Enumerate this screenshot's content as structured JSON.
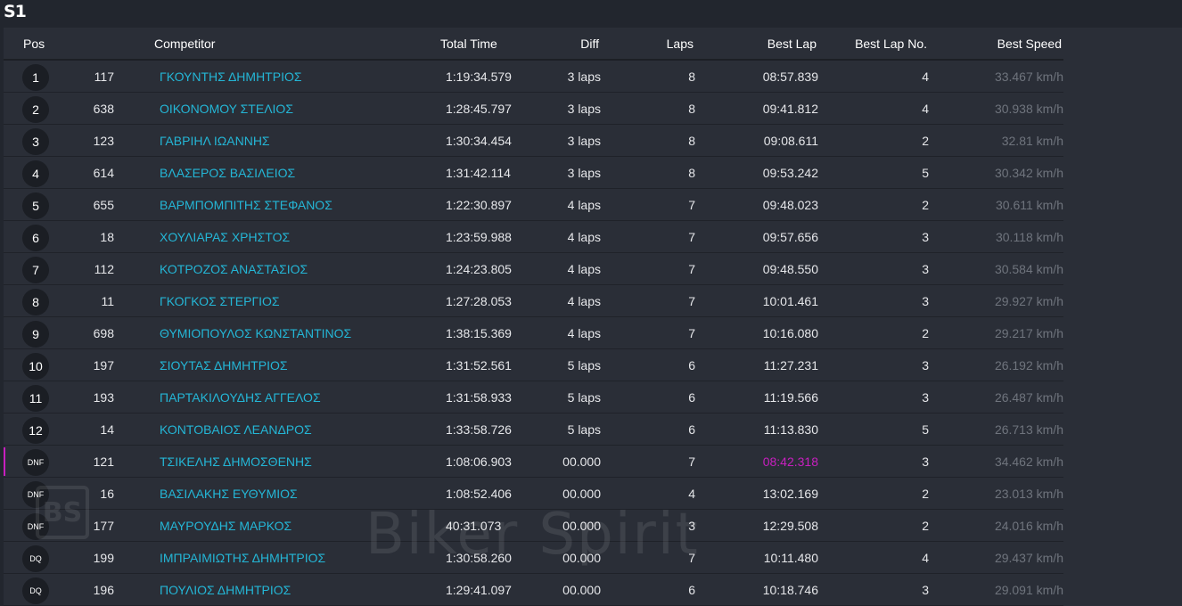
{
  "title": "S1",
  "columns": {
    "pos": "Pos",
    "competitor": "Competitor",
    "total_time": "Total Time",
    "diff": "Diff",
    "laps": "Laps",
    "best_lap": "Best Lap",
    "best_lap_no": "Best Lap No.",
    "best_speed": "Best Speed"
  },
  "rows": [
    {
      "pos": "1",
      "num": "117",
      "name": "ΓΚΟΥΝΤΗΣ ΔΗΜΗΤΡΙΟΣ",
      "total": "1:19:34.579",
      "diff": "3 laps",
      "laps": "8",
      "best_lap": "08:57.839",
      "best_lap_no": "4",
      "speed": "33.467 km/h"
    },
    {
      "pos": "2",
      "num": "638",
      "name": "ΟΙΚΟΝΟΜΟΥ ΣΤΕΛΙΟΣ",
      "total": "1:28:45.797",
      "diff": "3 laps",
      "laps": "8",
      "best_lap": "09:41.812",
      "best_lap_no": "4",
      "speed": "30.938 km/h"
    },
    {
      "pos": "3",
      "num": "123",
      "name": "ΓΑΒΡΙΗΛ ΙΩΑΝΝΗΣ",
      "total": "1:30:34.454",
      "diff": "3 laps",
      "laps": "8",
      "best_lap": "09:08.611",
      "best_lap_no": "2",
      "speed": "32.81 km/h"
    },
    {
      "pos": "4",
      "num": "614",
      "name": "ΒΛΑΣΕΡΟΣ ΒΑΣΙΛΕΙΟΣ",
      "total": "1:31:42.114",
      "diff": "3 laps",
      "laps": "8",
      "best_lap": "09:53.242",
      "best_lap_no": "5",
      "speed": "30.342 km/h"
    },
    {
      "pos": "5",
      "num": "655",
      "name": "ΒΑΡΜΠΟΜΠΙΤΗΣ ΣΤΕΦΑΝΟΣ",
      "total": "1:22:30.897",
      "diff": "4 laps",
      "laps": "7",
      "best_lap": "09:48.023",
      "best_lap_no": "2",
      "speed": "30.611 km/h"
    },
    {
      "pos": "6",
      "num": "18",
      "name": "ΧΟΥΛΙΑΡΑΣ ΧΡΗΣΤΟΣ",
      "total": "1:23:59.988",
      "diff": "4 laps",
      "laps": "7",
      "best_lap": "09:57.656",
      "best_lap_no": "3",
      "speed": "30.118 km/h"
    },
    {
      "pos": "7",
      "num": "112",
      "name": "ΚΟΤΡΟΖΟΣ ΑΝΑΣΤΑΣΙΟΣ",
      "total": "1:24:23.805",
      "diff": "4 laps",
      "laps": "7",
      "best_lap": "09:48.550",
      "best_lap_no": "3",
      "speed": "30.584 km/h"
    },
    {
      "pos": "8",
      "num": "11",
      "name": "ΓΚΟΓΚΟΣ ΣΤΕΡΓΙΟΣ",
      "total": "1:27:28.053",
      "diff": "4 laps",
      "laps": "7",
      "best_lap": "10:01.461",
      "best_lap_no": "3",
      "speed": "29.927 km/h"
    },
    {
      "pos": "9",
      "num": "698",
      "name": "ΘΥΜΙΟΠΟΥΛΟΣ ΚΩΝΣΤΑΝΤΙΝΟΣ",
      "total": "1:38:15.369",
      "diff": "4 laps",
      "laps": "7",
      "best_lap": "10:16.080",
      "best_lap_no": "2",
      "speed": "29.217 km/h"
    },
    {
      "pos": "10",
      "num": "197",
      "name": "ΣΙΟΥΤΑΣ ΔΗΜΗΤΡΙΟΣ",
      "total": "1:31:52.561",
      "diff": "5 laps",
      "laps": "6",
      "best_lap": "11:27.231",
      "best_lap_no": "3",
      "speed": "26.192 km/h"
    },
    {
      "pos": "11",
      "num": "193",
      "name": "ΠΑΡΤΑΚΙΛΟΥΔΗΣ ΑΓΓΕΛΟΣ",
      "total": "1:31:58.933",
      "diff": "5 laps",
      "laps": "6",
      "best_lap": "11:19.566",
      "best_lap_no": "3",
      "speed": "26.487 km/h"
    },
    {
      "pos": "12",
      "num": "14",
      "name": "ΚΟΝΤΟΒΑΙΟΣ ΛΕΑΝΔΡΟΣ",
      "total": "1:33:58.726",
      "diff": "5 laps",
      "laps": "6",
      "best_lap": "11:13.830",
      "best_lap_no": "5",
      "speed": "26.713 km/h"
    },
    {
      "pos": "DNF",
      "num": "121",
      "name": "ΤΣΙΚΕΛΗΣ ΔΗΜΟΣΘΕΝΗΣ",
      "total": "1:08:06.903",
      "diff": "00.000",
      "laps": "7",
      "best_lap": "08:42.318",
      "best_lap_no": "3",
      "speed": "34.462 km/h",
      "overall_best": true
    },
    {
      "pos": "DNF",
      "num": "16",
      "name": "ΒΑΣΙΛΑΚΗΣ ΕΥΘΥΜΙΟΣ",
      "total": "1:08:52.406",
      "diff": "00.000",
      "laps": "4",
      "best_lap": "13:02.169",
      "best_lap_no": "2",
      "speed": "23.013 km/h"
    },
    {
      "pos": "DNF",
      "num": "177",
      "name": "ΜΑΥΡΟΥΔΗΣ ΜΑΡΚΟΣ",
      "total": "40:31.073",
      "diff": "00.000",
      "laps": "3",
      "best_lap": "12:29.508",
      "best_lap_no": "2",
      "speed": "24.016 km/h"
    },
    {
      "pos": "DQ",
      "num": "199",
      "name": "ΙΜΠΡΑΙΜΙΩΤΗΣ ΔΗΜΗΤΡΙΟΣ",
      "total": "1:30:58.260",
      "diff": "00.000",
      "laps": "7",
      "best_lap": "10:11.480",
      "best_lap_no": "4",
      "speed": "29.437 km/h"
    },
    {
      "pos": "DQ",
      "num": "196",
      "name": "ΠΟΥΛΙΟΣ ΔΗΜΗΤΡΙΟΣ",
      "total": "1:29:41.097",
      "diff": "00.000",
      "laps": "6",
      "best_lap": "10:18.746",
      "best_lap_no": "3",
      "speed": "29.091 km/h"
    }
  ],
  "colors": {
    "background": "#22262e",
    "panel": "#2a2e37",
    "name_link": "#24b6d6",
    "overall_best": "#c81fbf",
    "speed_text": "#6f747d"
  },
  "watermark": {
    "logo": "BS",
    "text": "Biker Spirit"
  }
}
